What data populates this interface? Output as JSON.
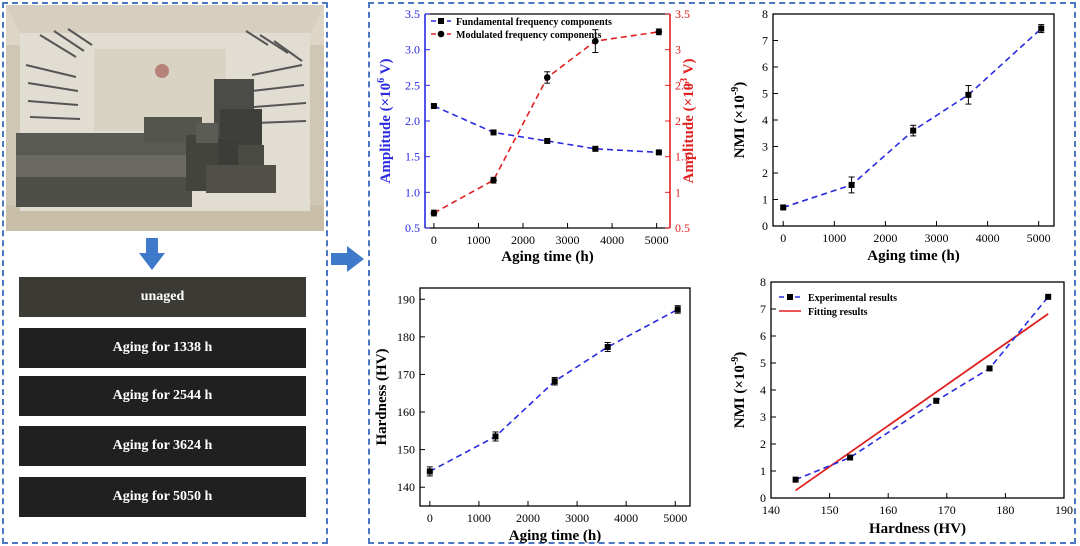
{
  "colors": {
    "border": "#4a78c2",
    "arrow": "#3f79c9",
    "blue": "#2a2ae0",
    "red": "#e02020",
    "black": "#000000"
  },
  "specimens": {
    "unaged": "unaged",
    "aging_1338": "Aging for 1338 h",
    "aging_2544": "Aging for 2544 h",
    "aging_3624": "Aging for 3624 h",
    "aging_5050": "Aging for 5050 h"
  },
  "chart_data": [
    {
      "id": "amplitude",
      "type": "line",
      "xlabel": "Aging time (h)",
      "ylabel_left": "Amplitude (×10",
      "ylabel_left_sup": "6",
      "ylabel_left_end": " V)",
      "ylabel_right": "Amplitude (×10",
      "ylabel_right_sup": "3",
      "ylabel_right_end": " V)",
      "xlim": [
        -200,
        5300
      ],
      "ylim_left": [
        0.5,
        3.5
      ],
      "ylim_right": [
        0.5,
        3.5
      ],
      "xticks": [
        0,
        1000,
        2000,
        3000,
        4000,
        5000
      ],
      "yticks_left": [
        0.5,
        1.0,
        1.5,
        2.0,
        2.5,
        3.0,
        3.5
      ],
      "yticks_right": [
        0.5,
        1,
        1.5,
        2,
        2.5,
        3,
        3.5
      ],
      "yticks_left_labels": [
        "0.5",
        "1.0",
        "1.5",
        "2.0",
        "2.5",
        "3.0",
        "3.5"
      ],
      "yticks_right_labels": [
        "0.5",
        "1",
        "1.5",
        "2",
        "2.5",
        "3",
        "3.5"
      ],
      "legend": "top-left",
      "series": [
        {
          "name": "Fundamental frequency components",
          "axis": "left",
          "color": "#2a2ae0",
          "marker": "square",
          "line": "dashed",
          "x": [
            0,
            1338,
            2544,
            3624,
            5050
          ],
          "y": [
            2.21,
            1.84,
            1.72,
            1.61,
            1.56
          ],
          "err": [
            0.02,
            0.01,
            0.01,
            0.01,
            0.01
          ]
        },
        {
          "name": "Modulated frequency components",
          "axis": "right",
          "color": "#e02020",
          "marker": "circle",
          "line": "dashed",
          "x": [
            0,
            1338,
            2544,
            3624,
            5050
          ],
          "y": [
            0.71,
            1.17,
            2.61,
            3.12,
            3.25
          ],
          "err": [
            0.04,
            0.04,
            0.08,
            0.16,
            0.04
          ]
        }
      ]
    },
    {
      "id": "nmi_time",
      "type": "line",
      "xlabel": "Aging time (h)",
      "ylabel": "NMI (×10",
      "ylabel_sup": "-9",
      "ylabel_end": ")",
      "xlim": [
        -200,
        5300
      ],
      "ylim": [
        0,
        8
      ],
      "xticks": [
        0,
        1000,
        2000,
        3000,
        4000,
        5000
      ],
      "yticks": [
        0,
        1,
        2,
        3,
        4,
        5,
        6,
        7,
        8
      ],
      "series": [
        {
          "color": "#2a2ae0",
          "marker": "square",
          "line": "dashed",
          "x": [
            0,
            1338,
            2544,
            3624,
            5050
          ],
          "y": [
            0.7,
            1.55,
            3.6,
            4.95,
            7.45
          ],
          "err": [
            0.05,
            0.3,
            0.2,
            0.35,
            0.15
          ]
        }
      ]
    },
    {
      "id": "hardness_time",
      "type": "line",
      "xlabel": "Aging time (h)",
      "ylabel": "Hardness (HV)",
      "xlim": [
        -200,
        5300
      ],
      "ylim": [
        135,
        193
      ],
      "xticks": [
        0,
        1000,
        2000,
        3000,
        4000,
        5000
      ],
      "yticks": [
        140,
        150,
        160,
        170,
        180,
        190
      ],
      "series": [
        {
          "color": "#2a2ae0",
          "marker": "square",
          "line": "dashed",
          "x": [
            0,
            1338,
            2544,
            3624,
            5050
          ],
          "y": [
            144.2,
            153.5,
            168.2,
            177.3,
            187.3
          ],
          "err": [
            1.2,
            1.2,
            1.0,
            1.2,
            1.0
          ]
        }
      ]
    },
    {
      "id": "nmi_hardness",
      "type": "line",
      "xlabel": "Hardness (HV)",
      "ylabel": "NMI (×10",
      "ylabel_sup": "-9",
      "ylabel_end": ")",
      "xlim": [
        140,
        190
      ],
      "ylim": [
        0,
        8
      ],
      "xticks": [
        140,
        150,
        160,
        170,
        180,
        190
      ],
      "yticks": [
        0,
        1,
        2,
        3,
        4,
        5,
        6,
        7,
        8
      ],
      "legend": "top-left",
      "series": [
        {
          "name": "Experimental results",
          "color": "#2a2ae0",
          "marker": "square",
          "line": "dashed",
          "x": [
            144.2,
            153.5,
            168.2,
            177.3,
            187.3
          ],
          "y": [
            0.68,
            1.5,
            3.6,
            4.8,
            7.45
          ]
        },
        {
          "name": "Fitting results",
          "color": "#e02020",
          "marker": "none",
          "line": "solid",
          "x": [
            144.2,
            187.3
          ],
          "y": [
            0.28,
            6.82
          ]
        }
      ]
    }
  ]
}
